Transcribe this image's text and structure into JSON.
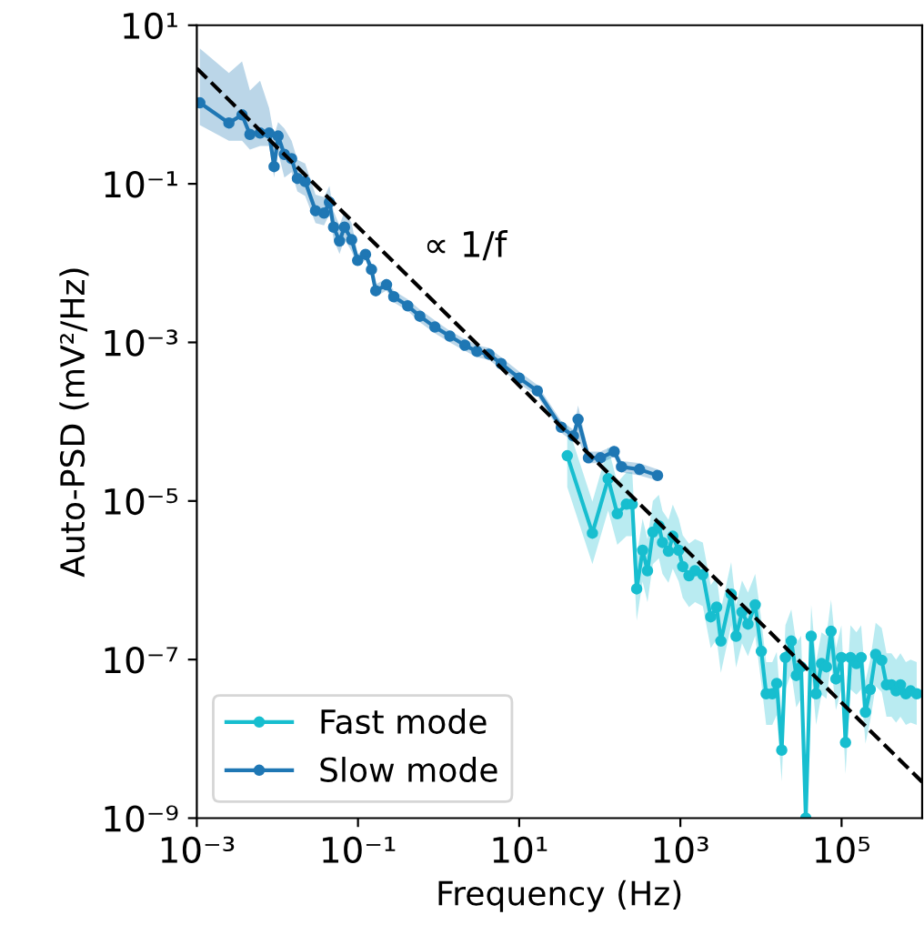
{
  "chart_data": {
    "type": "line",
    "xlabel": "Frequency (Hz)",
    "ylabel": "Auto-PSD (mV²/Hz)",
    "log": "xy",
    "marker": "circle",
    "line_style": "solid",
    "legend": "bottom left",
    "grid": false,
    "xlim": [
      0.001,
      1000000
    ],
    "ylim": [
      1e-09,
      10
    ],
    "xticks": [
      {
        "value": 0.001,
        "label": "10⁻³"
      },
      {
        "value": 0.1,
        "label": "10⁻¹"
      },
      {
        "value": 10,
        "label": "10¹"
      },
      {
        "value": 1000,
        "label": "10³"
      },
      {
        "value": 100000,
        "label": "10⁵"
      }
    ],
    "yticks": [
      {
        "value": 1e-09,
        "label": "10⁻⁹"
      },
      {
        "value": 1e-07,
        "label": "10⁻⁷"
      },
      {
        "value": 1e-05,
        "label": "10⁻⁵"
      },
      {
        "value": 0.001,
        "label": "10⁻³"
      },
      {
        "value": 0.1,
        "label": "10⁻¹"
      },
      {
        "value": 10,
        "label": "10¹"
      }
    ],
    "annotations": [
      "∝ 1/f"
    ],
    "series": [
      {
        "name": "Fast mode",
        "color": "#17becf",
        "x": [
          39.5,
          81,
          127,
          165,
          214,
          253,
          287,
          340,
          391,
          456,
          541,
          600,
          711,
          805,
          955,
          1070,
          1280,
          1520,
          1900,
          2380,
          2820,
          3180,
          4270,
          4910,
          5820,
          6900,
          8480,
          10100,
          11600,
          13800,
          15700,
          18100,
          20100,
          23800,
          27400,
          31500,
          36000,
          42000,
          48300,
          56400,
          64900,
          74100,
          85100,
          99500,
          112000,
          129000,
          153000,
          175000,
          198000,
          227000,
          265000,
          315000,
          361000,
          416000,
          475000,
          538000,
          628000,
          719000,
          857000
        ],
        "values": [
          3.72e-05,
          3.93e-06,
          1.91e-05,
          6.9e-06,
          9.1e-06,
          9.1e-06,
          7.8e-07,
          2.39e-06,
          1.32e-06,
          4.05e-06,
          4.85e-06,
          3e-06,
          2.32e-06,
          3.59e-06,
          2.39e-06,
          1.49e-06,
          1.14e-06,
          1.32e-06,
          1.18e-06,
          3.46e-07,
          4.58e-07,
          1.71e-07,
          6.7e-07,
          1.97e-07,
          3.97e-07,
          2.8e-07,
          4.9e-07,
          1.27e-07,
          3.7e-08,
          3.7e-08,
          5e-08,
          7.2e-09,
          1.06e-07,
          1.71e-07,
          6.3e-08,
          8.1e-08,
          1e-09,
          1.97e-07,
          3.7e-08,
          8.9e-08,
          8.1e-08,
          2.27e-07,
          5.7e-08,
          1.06e-07,
          9e-09,
          1.06e-07,
          8.9e-08,
          1.06e-07,
          2.17e-08,
          4.19e-08,
          1.16e-07,
          9.8e-08,
          4.8e-08,
          4.8e-08,
          4.03e-08,
          4.8e-08,
          3.7e-08,
          4.03e-08,
          3.7e-08
        ],
        "lower": [
          1.5e-05,
          1.6e-06,
          7.6e-06,
          2.8e-06,
          3.6e-06,
          3.6e-06,
          3.1e-07,
          9.6e-07,
          5.3e-07,
          1.6e-06,
          1.9e-06,
          1.2e-06,
          9.3e-07,
          1.4e-06,
          9.6e-07,
          6e-07,
          4.6e-07,
          5.3e-07,
          4.7e-07,
          1.4e-07,
          1.8e-07,
          6.8e-08,
          2.7e-07,
          7.9e-08,
          1.6e-07,
          1.1e-07,
          2e-07,
          5.1e-08,
          1.5e-08,
          1.5e-08,
          2e-08,
          2.9e-09,
          4.2e-08,
          6.8e-08,
          2.5e-08,
          3.2e-08,
          1e-09,
          7.9e-08,
          1.5e-08,
          3.6e-08,
          3.2e-08,
          9.1e-08,
          2.3e-08,
          4.2e-08,
          3.6e-09,
          4.2e-08,
          3.6e-08,
          4.2e-08,
          8.7e-09,
          1.7e-08,
          4.6e-08,
          3.9e-08,
          1.9e-08,
          1.9e-08,
          1.6e-08,
          1.9e-08,
          1.5e-08,
          1.6e-08,
          1.5e-08
        ],
        "upper": [
          9.3e-05,
          9.8e-06,
          4.8e-05,
          1.7e-05,
          2.3e-05,
          2.3e-05,
          2e-06,
          6e-06,
          3.3e-06,
          1e-05,
          1.2e-05,
          7.5e-06,
          5.8e-06,
          9e-06,
          6e-06,
          3.7e-06,
          2.9e-06,
          3.3e-06,
          3e-06,
          8.7e-07,
          1.1e-06,
          4.3e-07,
          1.7e-06,
          4.9e-07,
          9.9e-07,
          7e-07,
          1.2e-06,
          3.2e-07,
          9.3e-08,
          9.3e-08,
          1.25e-07,
          1.8e-08,
          2.7e-07,
          4.3e-07,
          1.6e-07,
          2e-07,
          2.5e-09,
          4.9e-07,
          9.3e-08,
          2.2e-07,
          2e-07,
          5.7e-07,
          1.4e-07,
          2.7e-07,
          2.3e-08,
          2.7e-07,
          2.2e-07,
          2.7e-07,
          5.4e-08,
          1e-07,
          2.9e-07,
          2.5e-07,
          1.2e-07,
          1.2e-07,
          1e-07,
          1.2e-07,
          9.3e-08,
          1e-07,
          9.3e-08
        ]
      },
      {
        "name": "Slow mode",
        "color": "#1f77b4",
        "x": [
          0.00109,
          0.0025,
          0.00364,
          0.00456,
          0.0061,
          0.0079,
          0.0091,
          0.0102,
          0.0122,
          0.015,
          0.0177,
          0.0221,
          0.0297,
          0.0379,
          0.0442,
          0.0498,
          0.059,
          0.068,
          0.0835,
          0.099,
          0.124,
          0.147,
          0.166,
          0.226,
          0.278,
          0.414,
          0.585,
          0.9,
          1.38,
          2.12,
          2.99,
          4.22,
          5.97,
          10,
          16.8,
          33.3,
          47.1,
          53.8,
          72.3,
          102,
          151,
          186,
          311,
          521
        ],
        "values": [
          1.05,
          0.586,
          0.74,
          0.42,
          0.436,
          0.436,
          0.165,
          0.4,
          0.235,
          0.208,
          0.117,
          0.107,
          0.0458,
          0.0428,
          0.0586,
          0.0284,
          0.019,
          0.0284,
          0.0197,
          0.0108,
          0.0129,
          0.0083,
          0.00448,
          0.00533,
          0.00377,
          0.00289,
          0.00214,
          0.00156,
          0.0012,
          0.00092,
          0.00077,
          0.00071,
          0.00054,
          0.000355,
          0.000245,
          8.5e-05,
          6.6e-05,
          0.000107,
          3.5e-05,
          3.5e-05,
          4.2e-05,
          2.7e-05,
          2.5e-05,
          2.1e-05
        ],
        "lower": [
          0.55,
          0.35,
          0.35,
          0.27,
          0.3,
          0.3,
          0.12,
          0.25,
          0.12,
          0.14,
          0.08,
          0.07,
          0.032,
          0.03,
          0.041,
          0.02,
          0.013,
          0.02,
          0.014,
          0.0092,
          0.011,
          0.0071,
          0.0038,
          0.0045,
          0.0032,
          0.0025,
          0.0018,
          0.0013,
          0.001,
          0.00078,
          0.00065,
          0.0006,
          0.00046,
          0.0003,
          0.00021,
          7.2e-05,
          5.6e-05,
          6e-05,
          3e-05,
          3e-05,
          3.6e-05,
          2.3e-05,
          2.1e-05,
          1.8e-05
        ],
        "upper": [
          5.1,
          2.5,
          3.5,
          1.5,
          2.0,
          0.9,
          0.4,
          0.6,
          0.5,
          0.35,
          0.2,
          0.18,
          0.073,
          0.068,
          0.094,
          0.045,
          0.03,
          0.045,
          0.032,
          0.013,
          0.015,
          0.01,
          0.0054,
          0.0064,
          0.0045,
          0.0035,
          0.0026,
          0.0019,
          0.0014,
          0.0011,
          0.00092,
          0.00085,
          0.00065,
          0.00043,
          0.00029,
          0.000102,
          7.9e-05,
          0.00016,
          4.2e-05,
          4.2e-05,
          5e-05,
          3.2e-05,
          3e-05,
          2.5e-05
        ]
      },
      {
        "type": "line",
        "color": "#000000",
        "line_style": "dashed",
        "marker": "none",
        "x": [
          0.001,
          1000000
        ],
        "values": [
          2.86,
          2.86e-09
        ]
      }
    ]
  }
}
